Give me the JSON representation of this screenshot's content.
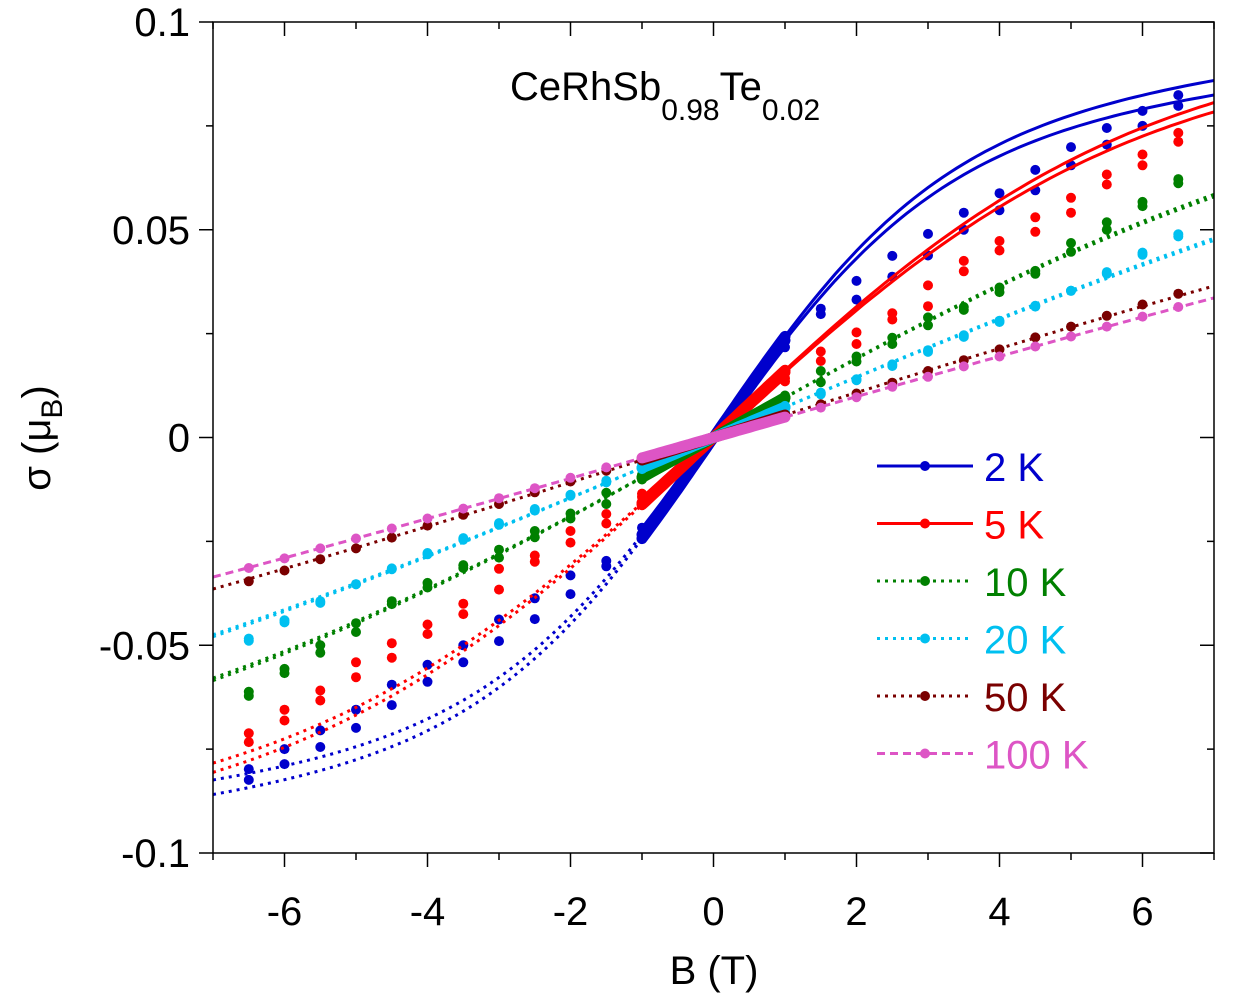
{
  "chart_data": {
    "type": "line",
    "title": {
      "formula": "CeRhSb",
      "sub1": "0.98",
      "element2": "Te",
      "sub2": "0.02"
    },
    "xlabel": "B (T)",
    "ylabel": {
      "prefix": "σ (μ",
      "subscript": "B",
      "suffix": ")"
    },
    "xlim": [
      -7,
      7
    ],
    "ylim": [
      -0.1,
      0.1
    ],
    "x_ticks": [
      -6,
      -4,
      -2,
      0,
      2,
      4,
      6
    ],
    "x_tick_labels": [
      "-6",
      "-4",
      "-2",
      "0",
      "2",
      "4",
      "6"
    ],
    "y_ticks": [
      -0.1,
      -0.05,
      0,
      0.05,
      0.1
    ],
    "y_tick_labels": [
      "-0.1",
      "-0.05",
      "0",
      "0.05",
      "0.1"
    ],
    "legend_position": "lower-right",
    "marker_fields": [
      -6.5,
      -6,
      -5.5,
      -5,
      -4.5,
      -4,
      -3.5,
      -3,
      -2.5,
      -2,
      -1.5,
      -1,
      1,
      1.5,
      2,
      2.5,
      3,
      3.5,
      4,
      4.5,
      5,
      5.5,
      6,
      6.5
    ],
    "series": [
      {
        "name": "2 K",
        "color": "#0000cc",
        "legend_style": "solid",
        "branches": [
          {
            "label": "upper",
            "fit": {
              "B_star": 3.2,
              "amplitude": 0.07376,
              "high_field_slope": 0.002
            },
            "points": [
              [
                1,
                0.0231
              ],
              [
                1.5,
                0.031
              ],
              [
                2,
                0.0377
              ],
              [
                2.5,
                0.0437
              ],
              [
                3,
                0.049
              ],
              [
                3.5,
                0.0541
              ],
              [
                4,
                0.0588
              ],
              [
                4.5,
                0.0644
              ],
              [
                5,
                0.0699
              ],
              [
                5.5,
                0.0745
              ],
              [
                6,
                0.0786
              ],
              [
                6.5,
                0.0824
              ]
            ]
          },
          {
            "label": "lower",
            "fit": {
              "B_star": 3.2,
              "amplitude": 0.07089,
              "high_field_slope": 0.0019
            },
            "points": [
              [
                1,
                0.0217
              ],
              [
                1.5,
                0.0297
              ],
              [
                2,
                0.0332
              ],
              [
                2.5,
                0.0387
              ],
              [
                3,
                0.0438
              ],
              [
                3.5,
                0.05
              ],
              [
                4,
                0.0547
              ],
              [
                4.5,
                0.0595
              ],
              [
                5,
                0.0655
              ],
              [
                5.5,
                0.0705
              ],
              [
                6,
                0.075
              ],
              [
                6.5,
                0.0798
              ]
            ]
          }
        ]
      },
      {
        "name": "5 K",
        "color": "#ff0000",
        "legend_style": "solid",
        "branches": [
          {
            "label": "upper",
            "fit": {
              "B_star": 6.0,
              "amplitude": 0.0979,
              "high_field_slope": 0.0
            },
            "points": [
              [
                1,
                0.0143
              ],
              [
                1.5,
                0.0207
              ],
              [
                2,
                0.0253
              ],
              [
                2.5,
                0.0299
              ],
              [
                3,
                0.0366
              ],
              [
                3.5,
                0.0425
              ],
              [
                4,
                0.0473
              ],
              [
                4.5,
                0.053
              ],
              [
                5,
                0.0577
              ],
              [
                5.5,
                0.0633
              ],
              [
                6,
                0.0681
              ],
              [
                6.5,
                0.0733
              ]
            ]
          },
          {
            "label": "lower",
            "fit": {
              "B_star": 6.0,
              "amplitude": 0.0952,
              "high_field_slope": 0.0
            },
            "points": [
              [
                1,
                0.0135
              ],
              [
                1.5,
                0.0184
              ],
              [
                2,
                0.0225
              ],
              [
                2.5,
                0.0284
              ],
              [
                3,
                0.0316
              ],
              [
                3.5,
                0.04
              ],
              [
                4,
                0.045
              ],
              [
                4.5,
                0.0495
              ],
              [
                5,
                0.0541
              ],
              [
                5.5,
                0.0609
              ],
              [
                6,
                0.0655
              ],
              [
                6.5,
                0.0712
              ]
            ]
          }
        ]
      },
      {
        "name": "10 K",
        "color": "#008000",
        "legend_style": "dotted",
        "branches": [
          {
            "label": "upper",
            "fit": {
              "B_star": 10.0,
              "amplitude": 0.0968,
              "high_field_slope": 0.0
            },
            "points": [
              [
                1,
                0.0101
              ],
              [
                1.5,
                0.016
              ],
              [
                2,
                0.0195
              ],
              [
                2.5,
                0.024
              ],
              [
                3,
                0.0289
              ],
              [
                3.5,
                0.0314
              ],
              [
                4,
                0.0361
              ],
              [
                4.5,
                0.0401
              ],
              [
                5,
                0.0468
              ],
              [
                5.5,
                0.0518
              ],
              [
                6,
                0.0567
              ],
              [
                6.5,
                0.0622
              ]
            ]
          },
          {
            "label": "lower",
            "fit": {
              "B_star": 10.0,
              "amplitude": 0.0958,
              "high_field_slope": 0.0
            },
            "points": [
              [
                1,
                0.009
              ],
              [
                1.5,
                0.0133
              ],
              [
                2,
                0.0183
              ],
              [
                2.5,
                0.0225
              ],
              [
                3,
                0.027
              ],
              [
                3.5,
                0.0307
              ],
              [
                4,
                0.035
              ],
              [
                4.5,
                0.0394
              ],
              [
                5,
                0.0447
              ],
              [
                5.5,
                0.05
              ],
              [
                6,
                0.0557
              ],
              [
                6.5,
                0.0612
              ]
            ]
          }
        ]
      },
      {
        "name": "20 K",
        "color": "#00c0f0",
        "legend_style": "dotted",
        "branches": [
          {
            "label": "upper",
            "fit": {
              "B_star": 15.0,
              "amplitude": 0.1101,
              "high_field_slope": 0.0
            },
            "points": [
              [
                1,
                0.0076
              ],
              [
                1.5,
                0.0108
              ],
              [
                2,
                0.014
              ],
              [
                2.5,
                0.0172
              ],
              [
                3,
                0.021
              ],
              [
                3.5,
                0.0246
              ],
              [
                4,
                0.0281
              ],
              [
                4.5,
                0.0315
              ],
              [
                5,
                0.0353
              ],
              [
                5.5,
                0.0398
              ],
              [
                6,
                0.0445
              ],
              [
                6.5,
                0.0484
              ]
            ]
          },
          {
            "label": "lower",
            "fit": {
              "B_star": 15.0,
              "amplitude": 0.109,
              "high_field_slope": 0.0
            },
            "points": [
              [
                1,
                0.0062
              ],
              [
                1.5,
                0.0104
              ],
              [
                2,
                0.0138
              ],
              [
                2.5,
                0.0176
              ],
              [
                3,
                0.0206
              ],
              [
                3.5,
                0.0242
              ],
              [
                4,
                0.0278
              ],
              [
                4.5,
                0.0317
              ],
              [
                5,
                0.0353
              ],
              [
                5.5,
                0.0394
              ],
              [
                6,
                0.044
              ],
              [
                6.5,
                0.0489
              ]
            ]
          }
        ]
      },
      {
        "name": "50 K",
        "color": "#7a0000",
        "legend_style": "dotted",
        "branches": [
          {
            "label": "single",
            "fit": {
              "B_star": 20.0,
              "amplitude": 0.1084,
              "high_field_slope": 0.0
            },
            "points": [
              [
                1,
                0.0052
              ],
              [
                1.5,
                0.008
              ],
              [
                2,
                0.0106
              ],
              [
                2.5,
                0.0132
              ],
              [
                3,
                0.016
              ],
              [
                3.5,
                0.0186
              ],
              [
                4,
                0.0212
              ],
              [
                4.5,
                0.0241
              ],
              [
                5,
                0.0267
              ],
              [
                5.5,
                0.0293
              ],
              [
                6,
                0.032
              ],
              [
                6.5,
                0.0346
              ]
            ]
          }
        ]
      },
      {
        "name": "100 K",
        "color": "#dd55c5",
        "legend_style": "dashed",
        "branches": [
          {
            "label": "single",
            "fit": {
              "B_star": 25.0,
              "amplitude": 0.1231,
              "high_field_slope": 0.0
            },
            "points": [
              [
                1,
                0.0048
              ],
              [
                1.5,
                0.0072
              ],
              [
                2,
                0.0097
              ],
              [
                2.5,
                0.0122
              ],
              [
                3,
                0.0146
              ],
              [
                3.5,
                0.0171
              ],
              [
                4,
                0.0195
              ],
              [
                4.5,
                0.0219
              ],
              [
                5,
                0.0243
              ],
              [
                5.5,
                0.0267
              ],
              [
                6,
                0.0291
              ],
              [
                6.5,
                0.0314
              ]
            ]
          }
        ]
      }
    ]
  }
}
